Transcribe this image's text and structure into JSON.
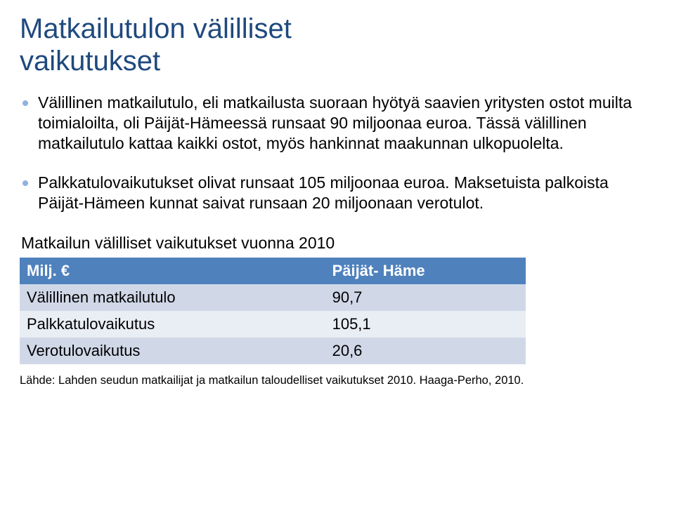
{
  "title_color": "#1f497d",
  "bullet_color": "#8db3e2",
  "title_line1": "Matkailutulon välilliset",
  "title_line2": "vaikutukset",
  "bullets": [
    "Välillinen matkailutulo, eli matkailusta suoraan hyötyä saavien yritysten ostot muilta toimialoilta, oli Päijät-Hämeessä runsaat 90 miljoonaa euroa. Tässä välillinen matkailutulo kattaa kaikki ostot, myös hankinnat maakunnan ulkopuolelta.",
    "Palkkatulovaikutukset olivat runsaat 105 miljoonaa euroa. Maksetuista palkoista Päijät-Hämeen kunnat saivat runsaan 20 miljoonaan verotulot."
  ],
  "table": {
    "caption": "Matkailun välilliset vaikutukset vuonna 2010",
    "header_bg": "#4f81bd",
    "band_bg": "#d0d8e8",
    "alt_bg": "#e9edf4",
    "columns": [
      "Milj. €",
      "Päijät- Häme"
    ],
    "rows": [
      [
        "Välillinen matkailutulo",
        "90,7"
      ],
      [
        "Palkkatulovaikutus",
        "105,1"
      ],
      [
        "Verotulovaikutus",
        "20,6"
      ]
    ]
  },
  "source": "Lähde: Lahden seudun matkailijat ja matkailun taloudelliset vaikutukset 2010. Haaga-Perho, 2010."
}
